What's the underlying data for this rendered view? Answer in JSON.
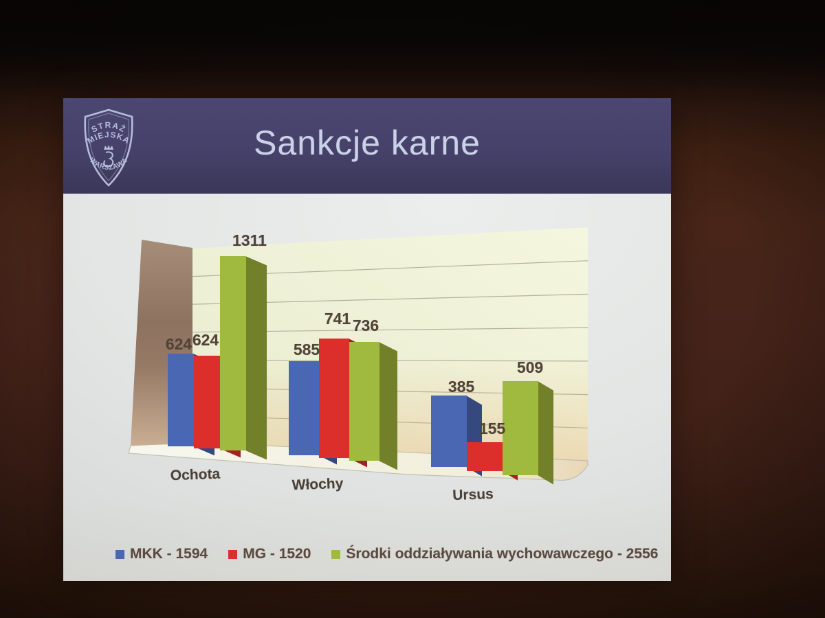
{
  "slide": {
    "title": "Sankcje karne",
    "logo": {
      "arc_top_1": "STRAŻ",
      "arc_top_2": "MIEJSKA",
      "arc_bottom": "WARSZAWA"
    }
  },
  "chart_data": {
    "type": "bar",
    "style": "3d-clustered-column",
    "title": "Sankcje karne",
    "categories": [
      "Ochota",
      "Włochy",
      "Ursus"
    ],
    "series": [
      {
        "name": "MKK",
        "total": 1594,
        "values": [
          624,
          585,
          385
        ],
        "color": "#4a67b4"
      },
      {
        "name": "MG",
        "total": 1520,
        "values": [
          624,
          741,
          155
        ],
        "color": "#dc2f2b"
      },
      {
        "name": "Środki oddziaływania wychowawczego",
        "total": 2556,
        "values": [
          1311,
          736,
          509
        ],
        "color": "#9fba3e"
      }
    ],
    "legend": [
      {
        "label": "MKK - 1594",
        "color": "#4a67b4"
      },
      {
        "label": "MG - 1520",
        "color": "#dc2f2b"
      },
      {
        "label": "Środki oddziaływania wychowawczego - 2556",
        "color": "#9fba3e"
      }
    ],
    "legend_position": "bottom",
    "data_labels": true,
    "value_axis_visible": false,
    "gridlines": "horizontal",
    "back_wall_color": "#eef0d6",
    "implied_ylim": [
      0,
      1400
    ]
  }
}
